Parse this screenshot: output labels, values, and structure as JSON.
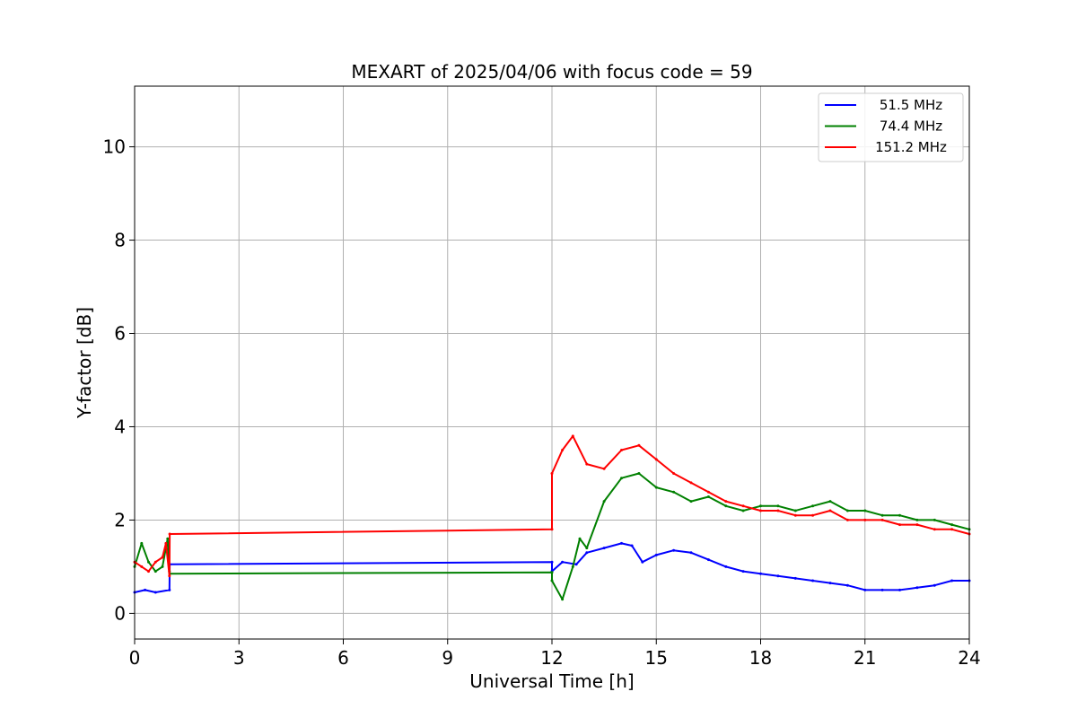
{
  "chart_data": {
    "type": "line",
    "title": "MEXART of 2025/04/06 with focus code = 59",
    "xlabel": "Universal Time [h]",
    "ylabel": "Y-factor [dB]",
    "xlim": [
      0,
      24
    ],
    "ylim": [
      -0.55,
      11.3
    ],
    "xticks": [
      0,
      3,
      6,
      9,
      12,
      15,
      18,
      21,
      24
    ],
    "yticks": [
      0,
      2,
      4,
      6,
      8,
      10
    ],
    "grid": true,
    "legend_position": "top-right",
    "series": [
      {
        "name": "51.5 MHz",
        "color": "#0000ff",
        "x": [
          0.0,
          0.3,
          0.6,
          1.0,
          1.01,
          12.0,
          12.0,
          12.3,
          12.7,
          13.0,
          13.5,
          14.0,
          14.3,
          14.6,
          15.0,
          15.5,
          16.0,
          16.5,
          17.0,
          17.5,
          18.0,
          18.5,
          19.0,
          19.5,
          20.0,
          20.5,
          21.0,
          21.5,
          22.0,
          22.5,
          23.0,
          23.5,
          24.0
        ],
        "values": [
          0.45,
          0.5,
          0.45,
          0.5,
          1.05,
          1.1,
          0.9,
          1.1,
          1.05,
          1.3,
          1.4,
          1.5,
          1.45,
          1.1,
          1.25,
          1.35,
          1.3,
          1.15,
          1.0,
          0.9,
          0.85,
          0.8,
          0.75,
          0.7,
          0.65,
          0.6,
          0.5,
          0.5,
          0.5,
          0.55,
          0.6,
          0.7,
          0.7
        ]
      },
      {
        "name": "74.4 MHz",
        "color": "#008000",
        "x": [
          0.0,
          0.2,
          0.4,
          0.6,
          0.8,
          0.95,
          1.0,
          1.01,
          12.0,
          12.0,
          12.3,
          12.6,
          12.8,
          13.0,
          13.5,
          14.0,
          14.5,
          15.0,
          15.5,
          16.0,
          16.5,
          17.0,
          17.5,
          18.0,
          18.5,
          19.0,
          19.5,
          20.0,
          20.5,
          21.0,
          21.5,
          22.0,
          22.5,
          23.0,
          23.5,
          24.0
        ],
        "values": [
          1.0,
          1.5,
          1.1,
          0.9,
          1.0,
          1.6,
          0.9,
          0.85,
          0.88,
          0.7,
          0.3,
          1.0,
          1.6,
          1.4,
          2.4,
          2.9,
          3.0,
          2.7,
          2.6,
          2.4,
          2.5,
          2.3,
          2.2,
          2.3,
          2.3,
          2.2,
          2.3,
          2.4,
          2.2,
          2.2,
          2.1,
          2.1,
          2.0,
          2.0,
          1.9,
          1.8
        ]
      },
      {
        "name": "151.2 MHz",
        "color": "#ff0000",
        "x": [
          0.0,
          0.2,
          0.4,
          0.6,
          0.8,
          0.9,
          1.0,
          1.01,
          12.0,
          12.0,
          12.3,
          12.6,
          13.0,
          13.5,
          14.0,
          14.5,
          15.0,
          15.5,
          16.0,
          16.5,
          17.0,
          17.5,
          18.0,
          18.5,
          19.0,
          19.5,
          20.0,
          20.5,
          21.0,
          21.5,
          22.0,
          22.5,
          23.0,
          23.5,
          24.0
        ],
        "values": [
          1.1,
          1.0,
          0.9,
          1.1,
          1.2,
          1.5,
          0.8,
          1.7,
          1.8,
          3.0,
          3.5,
          3.8,
          3.2,
          3.1,
          3.5,
          3.6,
          3.3,
          3.0,
          2.8,
          2.6,
          2.4,
          2.3,
          2.2,
          2.2,
          2.1,
          2.1,
          2.2,
          2.0,
          2.0,
          2.0,
          1.9,
          1.9,
          1.8,
          1.8,
          1.7
        ]
      }
    ]
  }
}
